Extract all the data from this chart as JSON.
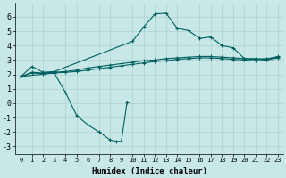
{
  "bg_color": "#c8e8e8",
  "grid_color": "#b0d0d0",
  "line_color": "#006060",
  "xlabel": "Humidex (Indice chaleur)",
  "xlim": [
    -0.5,
    23.5
  ],
  "ylim": [
    -3.5,
    7
  ],
  "yticks": [
    -3,
    -2,
    -1,
    0,
    1,
    2,
    3,
    4,
    5,
    6
  ],
  "xticks": [
    0,
    1,
    2,
    3,
    4,
    5,
    6,
    7,
    8,
    9,
    10,
    11,
    12,
    13,
    14,
    15,
    16,
    17,
    18,
    19,
    20,
    21,
    22,
    23
  ],
  "series": [
    {
      "x": [
        0,
        1,
        2,
        3,
        10,
        11,
        12,
        13,
        14,
        15,
        16,
        17,
        18,
        19,
        20,
        21,
        22,
        23
      ],
      "y": [
        1.85,
        2.55,
        2.15,
        2.2,
        4.3,
        5.3,
        6.2,
        6.25,
        5.2,
        5.05,
        4.5,
        4.6,
        4.0,
        3.85,
        3.1,
        3.1,
        3.05,
        3.25
      ]
    },
    {
      "x": [
        0,
        1,
        2,
        3,
        4,
        5,
        6,
        7,
        8,
        9,
        10,
        11,
        12,
        13,
        14,
        15,
        16,
        17,
        18,
        19,
        20,
        21,
        22,
        23
      ],
      "y": [
        1.85,
        2.15,
        2.1,
        2.15,
        2.2,
        2.3,
        2.45,
        2.55,
        2.65,
        2.75,
        2.85,
        2.95,
        3.0,
        3.1,
        3.15,
        3.2,
        3.25,
        3.25,
        3.2,
        3.15,
        3.1,
        3.05,
        3.1,
        3.2
      ]
    },
    {
      "x": [
        0,
        1,
        2,
        3,
        4,
        5,
        6,
        7,
        8,
        9,
        10,
        11,
        12,
        13,
        14,
        15,
        16,
        17,
        18,
        19,
        20,
        21,
        22,
        23
      ],
      "y": [
        1.85,
        2.1,
        2.05,
        2.1,
        2.15,
        2.2,
        2.3,
        2.4,
        2.5,
        2.6,
        2.7,
        2.8,
        2.9,
        2.95,
        3.05,
        3.1,
        3.15,
        3.15,
        3.1,
        3.05,
        3.0,
        2.95,
        3.0,
        3.15
      ]
    },
    {
      "x": [
        0,
        3,
        4,
        5,
        6,
        7,
        8,
        8.5,
        9,
        9.5
      ],
      "y": [
        1.85,
        2.1,
        0.75,
        -0.85,
        -1.5,
        -2.0,
        -2.55,
        -2.65,
        -2.65,
        0.05
      ]
    }
  ]
}
